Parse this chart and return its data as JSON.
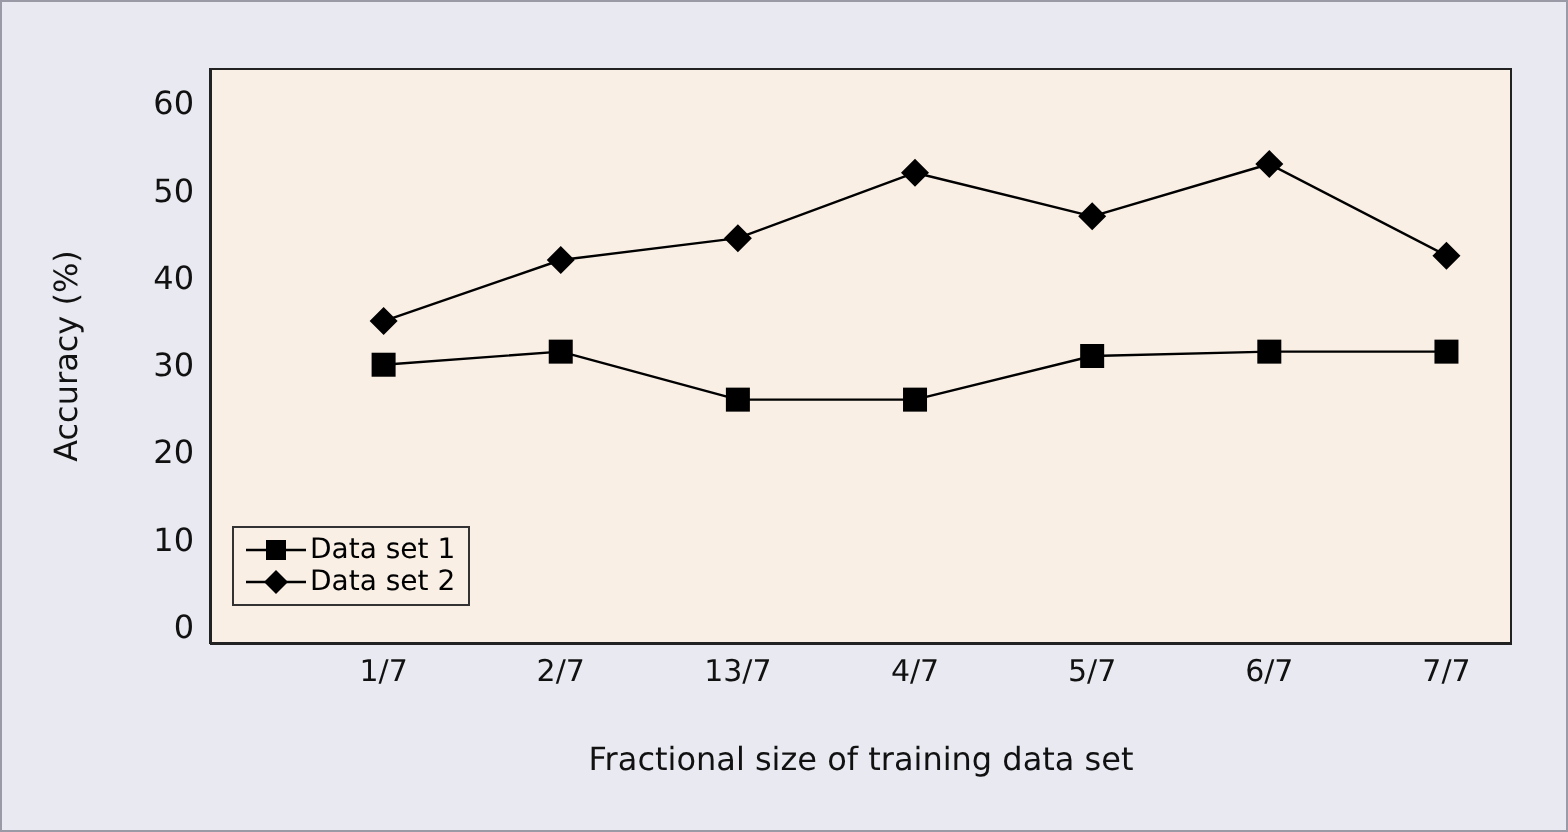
{
  "chart_data": {
    "type": "line",
    "xlabel": "Fractional size of training data set",
    "ylabel": "Accuracy (%)",
    "categories": [
      "1/7",
      "2/7",
      "13/7",
      "4/7",
      "5/7",
      "6/7",
      "7/7"
    ],
    "series": [
      {
        "name": "Data set 1",
        "color": "#000000",
        "marker": "square",
        "values": [
          30,
          31.5,
          26,
          26,
          31,
          31.5,
          31.5
        ]
      },
      {
        "name": "Data set 2",
        "color": "#000000",
        "marker": "diamond",
        "values": [
          35,
          42,
          44.5,
          52,
          47,
          53,
          42.5
        ]
      }
    ],
    "ylim": [
      -2,
      64
    ],
    "yticks": [
      0,
      10,
      20,
      30,
      40,
      50,
      60
    ],
    "grid": false,
    "legend": "bottom left",
    "line_style": "solid"
  }
}
